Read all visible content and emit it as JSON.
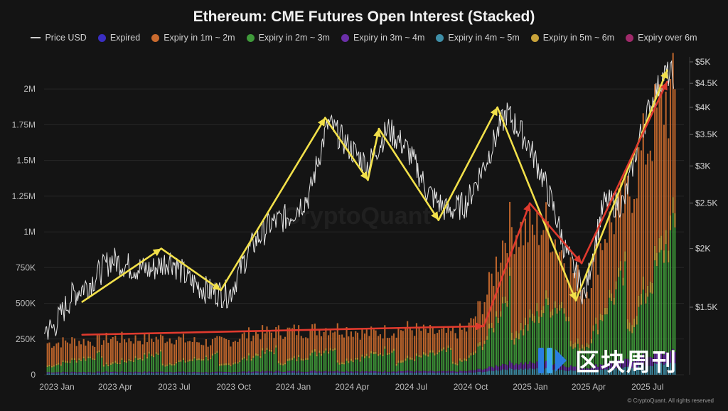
{
  "title": "Ethereum: CME Futures Open Interest (Stacked)",
  "legend": [
    {
      "name": "Price USD",
      "color": "#cfcfcf",
      "kind": "line"
    },
    {
      "name": "Expired",
      "color": "#3a2ec2",
      "kind": "dot"
    },
    {
      "name": "Expiry in 1m ~ 2m",
      "color": "#c96a2e",
      "kind": "dot"
    },
    {
      "name": "Expiry in 2m ~ 3m",
      "color": "#3f9a3a",
      "kind": "dot"
    },
    {
      "name": "Expiry in 3m ~ 4m",
      "color": "#6b2fa8",
      "kind": "dot"
    },
    {
      "name": "Expiry in 4m ~ 5m",
      "color": "#3f8fa8",
      "kind": "dot"
    },
    {
      "name": "Expiry in 5m ~ 6m",
      "color": "#c9a33a",
      "kind": "dot"
    },
    {
      "name": "Expiry over 6m",
      "color": "#a02a6a",
      "kind": "dot"
    }
  ],
  "watermark": "CryptoQuant",
  "copyright": "© CryptoQuant. All rights reserved",
  "brand_text": "区块周刊",
  "chart_data": {
    "type": "bar",
    "x_ticks": [
      "2023 Jan",
      "2023 Apr",
      "2023 Jul",
      "2023 Oct",
      "2024 Jan",
      "2024 Apr",
      "2024 Jul",
      "2024 Oct",
      "2025 Jan",
      "2025 Apr",
      "2025 Jul"
    ],
    "y_left_ticks": [
      "0",
      "250K",
      "500K",
      "750K",
      "1M",
      "1.25M",
      "1.5M",
      "1.75M",
      "2M"
    ],
    "y_left_range": [
      0,
      2150000
    ],
    "y_right_ticks": [
      "$1.5K",
      "$2K",
      "$2.5K",
      "$3K",
      "$3.5K",
      "$4K",
      "$4.5K",
      "$5K"
    ],
    "y_right_values": [
      1500,
      2000,
      2500,
      3000,
      3500,
      4000,
      4500,
      5000
    ],
    "y_right_scale": "log",
    "x_range": [
      "2023-01-01",
      "2025-09-15"
    ],
    "open_interest_total_monthly": [
      {
        "month": "2023-01",
        "value": 230000
      },
      {
        "month": "2023-02",
        "value": 250000
      },
      {
        "month": "2023-03",
        "value": 240000
      },
      {
        "month": "2023-04",
        "value": 270000
      },
      {
        "month": "2023-05",
        "value": 260000
      },
      {
        "month": "2023-06",
        "value": 265000
      },
      {
        "month": "2023-07",
        "value": 270000
      },
      {
        "month": "2023-08",
        "value": 245000
      },
      {
        "month": "2023-09",
        "value": 235000
      },
      {
        "month": "2023-10",
        "value": 250000
      },
      {
        "month": "2023-11",
        "value": 300000
      },
      {
        "month": "2023-12",
        "value": 310000
      },
      {
        "month": "2024-01",
        "value": 320000
      },
      {
        "month": "2024-02",
        "value": 325000
      },
      {
        "month": "2024-03",
        "value": 345000
      },
      {
        "month": "2024-04",
        "value": 330000
      },
      {
        "month": "2024-05",
        "value": 300000
      },
      {
        "month": "2024-06",
        "value": 320000
      },
      {
        "month": "2024-07",
        "value": 340000
      },
      {
        "month": "2024-08",
        "value": 310000
      },
      {
        "month": "2024-09",
        "value": 300000
      },
      {
        "month": "2024-10",
        "value": 330000
      },
      {
        "month": "2024-11",
        "value": 600000
      },
      {
        "month": "2024-12",
        "value": 1080000
      },
      {
        "month": "2025-01",
        "value": 1040000
      },
      {
        "month": "2025-02",
        "value": 1100000
      },
      {
        "month": "2025-03",
        "value": 850000
      },
      {
        "month": "2025-04",
        "value": 600000
      },
      {
        "month": "2025-05",
        "value": 1050000
      },
      {
        "month": "2025-06",
        "value": 1250000
      },
      {
        "month": "2025-07",
        "value": 1650000
      },
      {
        "month": "2025-08",
        "value": 2000000
      }
    ],
    "price_usd_monthly": [
      {
        "month": "2023-01",
        "value": 1350
      },
      {
        "month": "2023-02",
        "value": 1600
      },
      {
        "month": "2023-03",
        "value": 1700
      },
      {
        "month": "2023-04",
        "value": 1900
      },
      {
        "month": "2023-05",
        "value": 1830
      },
      {
        "month": "2023-06",
        "value": 1800
      },
      {
        "month": "2023-07",
        "value": 1900
      },
      {
        "month": "2023-08",
        "value": 1700
      },
      {
        "month": "2023-09",
        "value": 1620
      },
      {
        "month": "2023-10",
        "value": 1600
      },
      {
        "month": "2023-11",
        "value": 2000
      },
      {
        "month": "2023-12",
        "value": 2250
      },
      {
        "month": "2024-01",
        "value": 2350
      },
      {
        "month": "2024-02",
        "value": 2600
      },
      {
        "month": "2024-03",
        "value": 3700
      },
      {
        "month": "2024-04",
        "value": 3300
      },
      {
        "month": "2024-05",
        "value": 3000
      },
      {
        "month": "2024-06",
        "value": 3600
      },
      {
        "month": "2024-07",
        "value": 3250
      },
      {
        "month": "2024-08",
        "value": 2650
      },
      {
        "month": "2024-09",
        "value": 2400
      },
      {
        "month": "2024-10",
        "value": 2500
      },
      {
        "month": "2024-11",
        "value": 3100
      },
      {
        "month": "2024-12",
        "value": 3900
      },
      {
        "month": "2025-01",
        "value": 3400
      },
      {
        "month": "2025-02",
        "value": 2700
      },
      {
        "month": "2025-03",
        "value": 2000
      },
      {
        "month": "2025-04",
        "value": 1580
      },
      {
        "month": "2025-05",
        "value": 2500
      },
      {
        "month": "2025-06",
        "value": 2500
      },
      {
        "month": "2025-07",
        "value": 3700
      },
      {
        "month": "2025-08",
        "value": 4700
      }
    ],
    "annotations": [
      {
        "kind": "trend-arrow",
        "color": "#f2e04a",
        "points_date_price": [
          [
            "2023-03-01",
            1540
          ],
          [
            "2023-07-01",
            2000
          ],
          [
            "2023-10-01",
            1630
          ],
          [
            "2024-03-10",
            3800
          ],
          [
            "2024-05-15",
            2800
          ],
          [
            "2024-06-01",
            3600
          ],
          [
            "2024-09-01",
            2300
          ],
          [
            "2024-12-01",
            4000
          ],
          [
            "2025-04-01",
            1550
          ],
          [
            "2025-08-20",
            4800
          ]
        ]
      },
      {
        "kind": "trend-arrow",
        "color": "#e03a2e",
        "points_date_oi": [
          [
            "2023-03-01",
            280000
          ],
          [
            "2024-11-10",
            340000
          ],
          [
            "2025-01-20",
            1200000
          ],
          [
            "2025-04-10",
            780000
          ],
          [
            "2025-08-20",
            2050000
          ]
        ]
      }
    ]
  }
}
